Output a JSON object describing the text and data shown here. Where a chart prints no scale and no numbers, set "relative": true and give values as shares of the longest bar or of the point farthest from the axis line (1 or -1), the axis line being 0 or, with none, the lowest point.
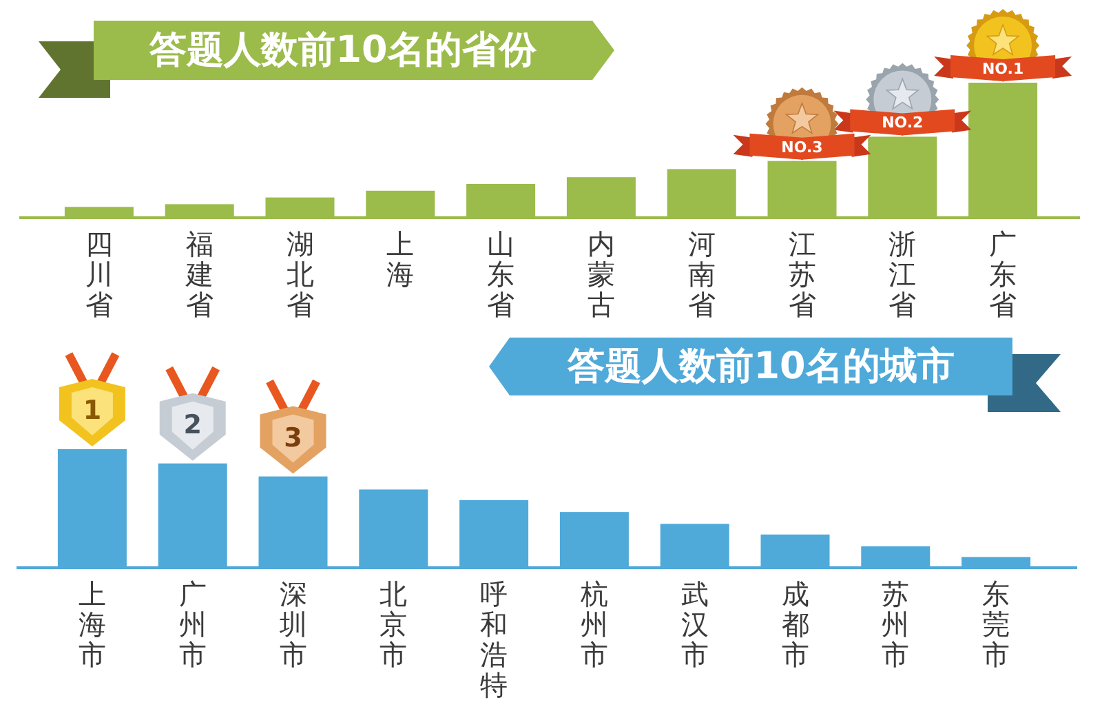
{
  "chart_data": [
    {
      "type": "bar",
      "title": "答题人数前10名的省份",
      "categories": [
        "四川省",
        "福建省",
        "湖北省",
        "上海",
        "山东省",
        "内蒙古",
        "河南省",
        "江苏省",
        "浙江省",
        "广东省"
      ],
      "values": [
        0.08,
        0.1,
        0.15,
        0.2,
        0.25,
        0.3,
        0.36,
        0.42,
        0.6,
        1
      ],
      "color": "#9bbb4b",
      "relative": true,
      "annotations": [
        {
          "text": "NO.1",
          "x": "广东省",
          "y": 1
        },
        {
          "text": "NO.2",
          "x": "浙江省",
          "y": 0.6
        },
        {
          "text": "NO.3",
          "x": "江苏省",
          "y": 0.42
        }
      ]
    },
    {
      "type": "bar",
      "title": "答题人数前10名的城市",
      "categories": [
        "上海市",
        "广州市",
        "深圳市",
        "北京市",
        "呼和浩特",
        "杭州市",
        "武汉市",
        "成都市",
        "苏州市",
        "东莞市"
      ],
      "values": [
        1,
        0.88,
        0.77,
        0.66,
        0.57,
        0.47,
        0.37,
        0.28,
        0.18,
        0.09
      ],
      "color": "#4fa9d9",
      "relative": true,
      "annotations": [
        {
          "text": "1",
          "x": "上海市",
          "y": 1
        },
        {
          "text": "2",
          "x": "广州市",
          "y": 0.88
        },
        {
          "text": "3",
          "x": "深圳市",
          "y": 0.77
        }
      ]
    }
  ]
}
